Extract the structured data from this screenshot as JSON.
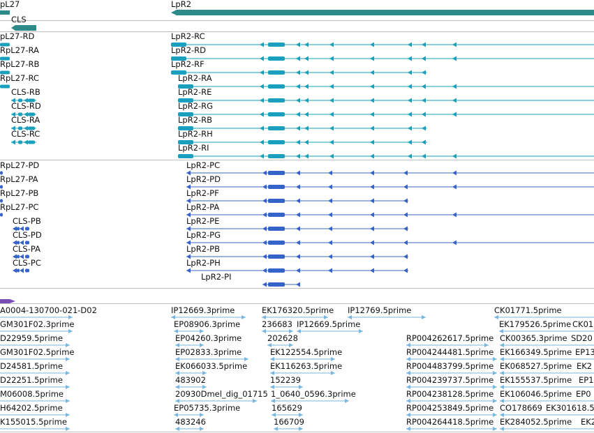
{
  "genes": {
    "lpr2": "LpR2",
    "rpl27": "pL27",
    "cls": "CLS"
  },
  "group_a": {
    "left": [
      "pL27-RD",
      "RpL27-RA",
      "RpL27-RB",
      "RpL27-RC",
      "CLS-RB",
      "CLS-RD",
      "CLS-RA",
      "CLS-RC"
    ],
    "right": [
      "LpR2-RC",
      "LpR2-RD",
      "LpR2-RF",
      "LpR2-RA",
      "LpR2-RE",
      "LpR2-RG",
      "LpR2-RB",
      "LpR2-RH",
      "LpR2-RI"
    ]
  },
  "group_b": {
    "left": [
      "RpL27-PD",
      "RpL27-PA",
      "RpL27-PB",
      "RpL27-PC",
      "CLS-PB",
      "CLS-PD",
      "CLS-PA",
      "CLS-PC"
    ],
    "right": [
      "LpR2-PC",
      "LpR2-PD",
      "LpR2-PF",
      "LpR2-PA",
      "LpR2-PE",
      "LpR2-PG",
      "LpR2-PB",
      "LpR2-PH",
      "LpR2-PI"
    ]
  },
  "est_labels": [
    "A0004-130700-021-D02",
    "IP12669.3prime",
    "EK176320.5prime",
    "IP12769.5prime",
    "CK01771.5prime",
    "GM301F02.3prime",
    "EP08906.3prime",
    "236683",
    "IP12669.5prime",
    "EK179526.5prime",
    "CK01",
    "D22959.5prime",
    "EP04260.3prime",
    "202628",
    "RP004262617.5prime",
    "CK00365.3prime",
    "SD20",
    "GM301F02.5prime",
    "EP02833.3prime",
    "EK122554.5prime",
    "RP004244481.5prime",
    "EK166349.5prime",
    "EP13",
    "D24581.5prime",
    "EK066033.5prime",
    "EK116263.5prime",
    "RP004483799.5prime",
    "EK068527.5prime",
    "EK2",
    "D22251.5prime",
    "483902",
    "152239",
    "RP004239737.5prime",
    "EK155537.5prime",
    "EP1",
    "M06008.5prime",
    "20930Dmel_dig_01715",
    "1_0640_0596.3prime",
    "RP004238128.5prime",
    "EK106046.5prime",
    "EP0",
    "H64202.5prime",
    "EP05735.3prime",
    "165629",
    "RP004253849.5prime",
    "CO178669",
    "EK301618.5",
    "K155015.5prime",
    "483246",
    "166709",
    "RP004264418.5prime",
    "EK284052.5prime",
    "EK2"
  ],
  "colors": {
    "gene": "#2c8a8a",
    "transcript": "#1aa0bd",
    "protein": "#3663c9",
    "est": "#79b6dd",
    "misc": "#7a4fb5"
  }
}
